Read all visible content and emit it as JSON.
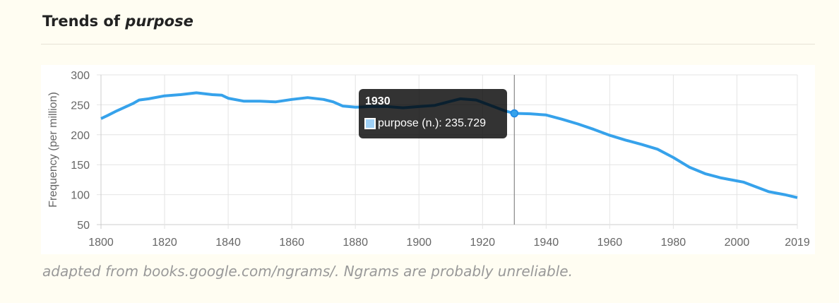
{
  "header": {
    "title_prefix": "Trends of",
    "title_word": "purpose"
  },
  "caption": "adapted from books.google.com/ngrams/. Ngrams are probably unreliable.",
  "tooltip": {
    "year": "1930",
    "label": "purpose (n.): 235.729",
    "color": "#9fd0f5"
  },
  "chart_data": {
    "type": "line",
    "title": "",
    "xlabel": "",
    "ylabel": "Frequency (per million)",
    "xlim": [
      1800,
      2019
    ],
    "ylim": [
      50,
      300
    ],
    "xticks": [
      1800,
      1820,
      1840,
      1860,
      1880,
      1900,
      1920,
      1940,
      1960,
      1980,
      2000,
      2019
    ],
    "yticks": [
      50,
      100,
      150,
      200,
      250,
      300
    ],
    "grid": true,
    "line_color": "#36a2eb",
    "hover": {
      "x": 1930,
      "y": 235.729
    },
    "series": [
      {
        "name": "purpose (n.)",
        "x": [
          1800,
          1802,
          1805,
          1810,
          1812,
          1815,
          1820,
          1825,
          1830,
          1835,
          1838,
          1840,
          1845,
          1850,
          1855,
          1860,
          1865,
          1870,
          1873,
          1876,
          1880,
          1885,
          1890,
          1895,
          1900,
          1905,
          1910,
          1913,
          1918,
          1922,
          1927,
          1930,
          1935,
          1940,
          1945,
          1950,
          1955,
          1960,
          1965,
          1970,
          1975,
          1980,
          1985,
          1990,
          1995,
          2000,
          2002,
          2005,
          2010,
          2015,
          2019
        ],
        "y": [
          227,
          232,
          240,
          252,
          258,
          260,
          265,
          267,
          270,
          267,
          266,
          261,
          256,
          256,
          255,
          259,
          262,
          259,
          255,
          248,
          246,
          247,
          247,
          245,
          247,
          249,
          256,
          260,
          258,
          250,
          240,
          235.729,
          235,
          233,
          226,
          218,
          209,
          199,
          191,
          184,
          176,
          162,
          146,
          135,
          128,
          123,
          121,
          115,
          105,
          100,
          95
        ]
      }
    ]
  }
}
